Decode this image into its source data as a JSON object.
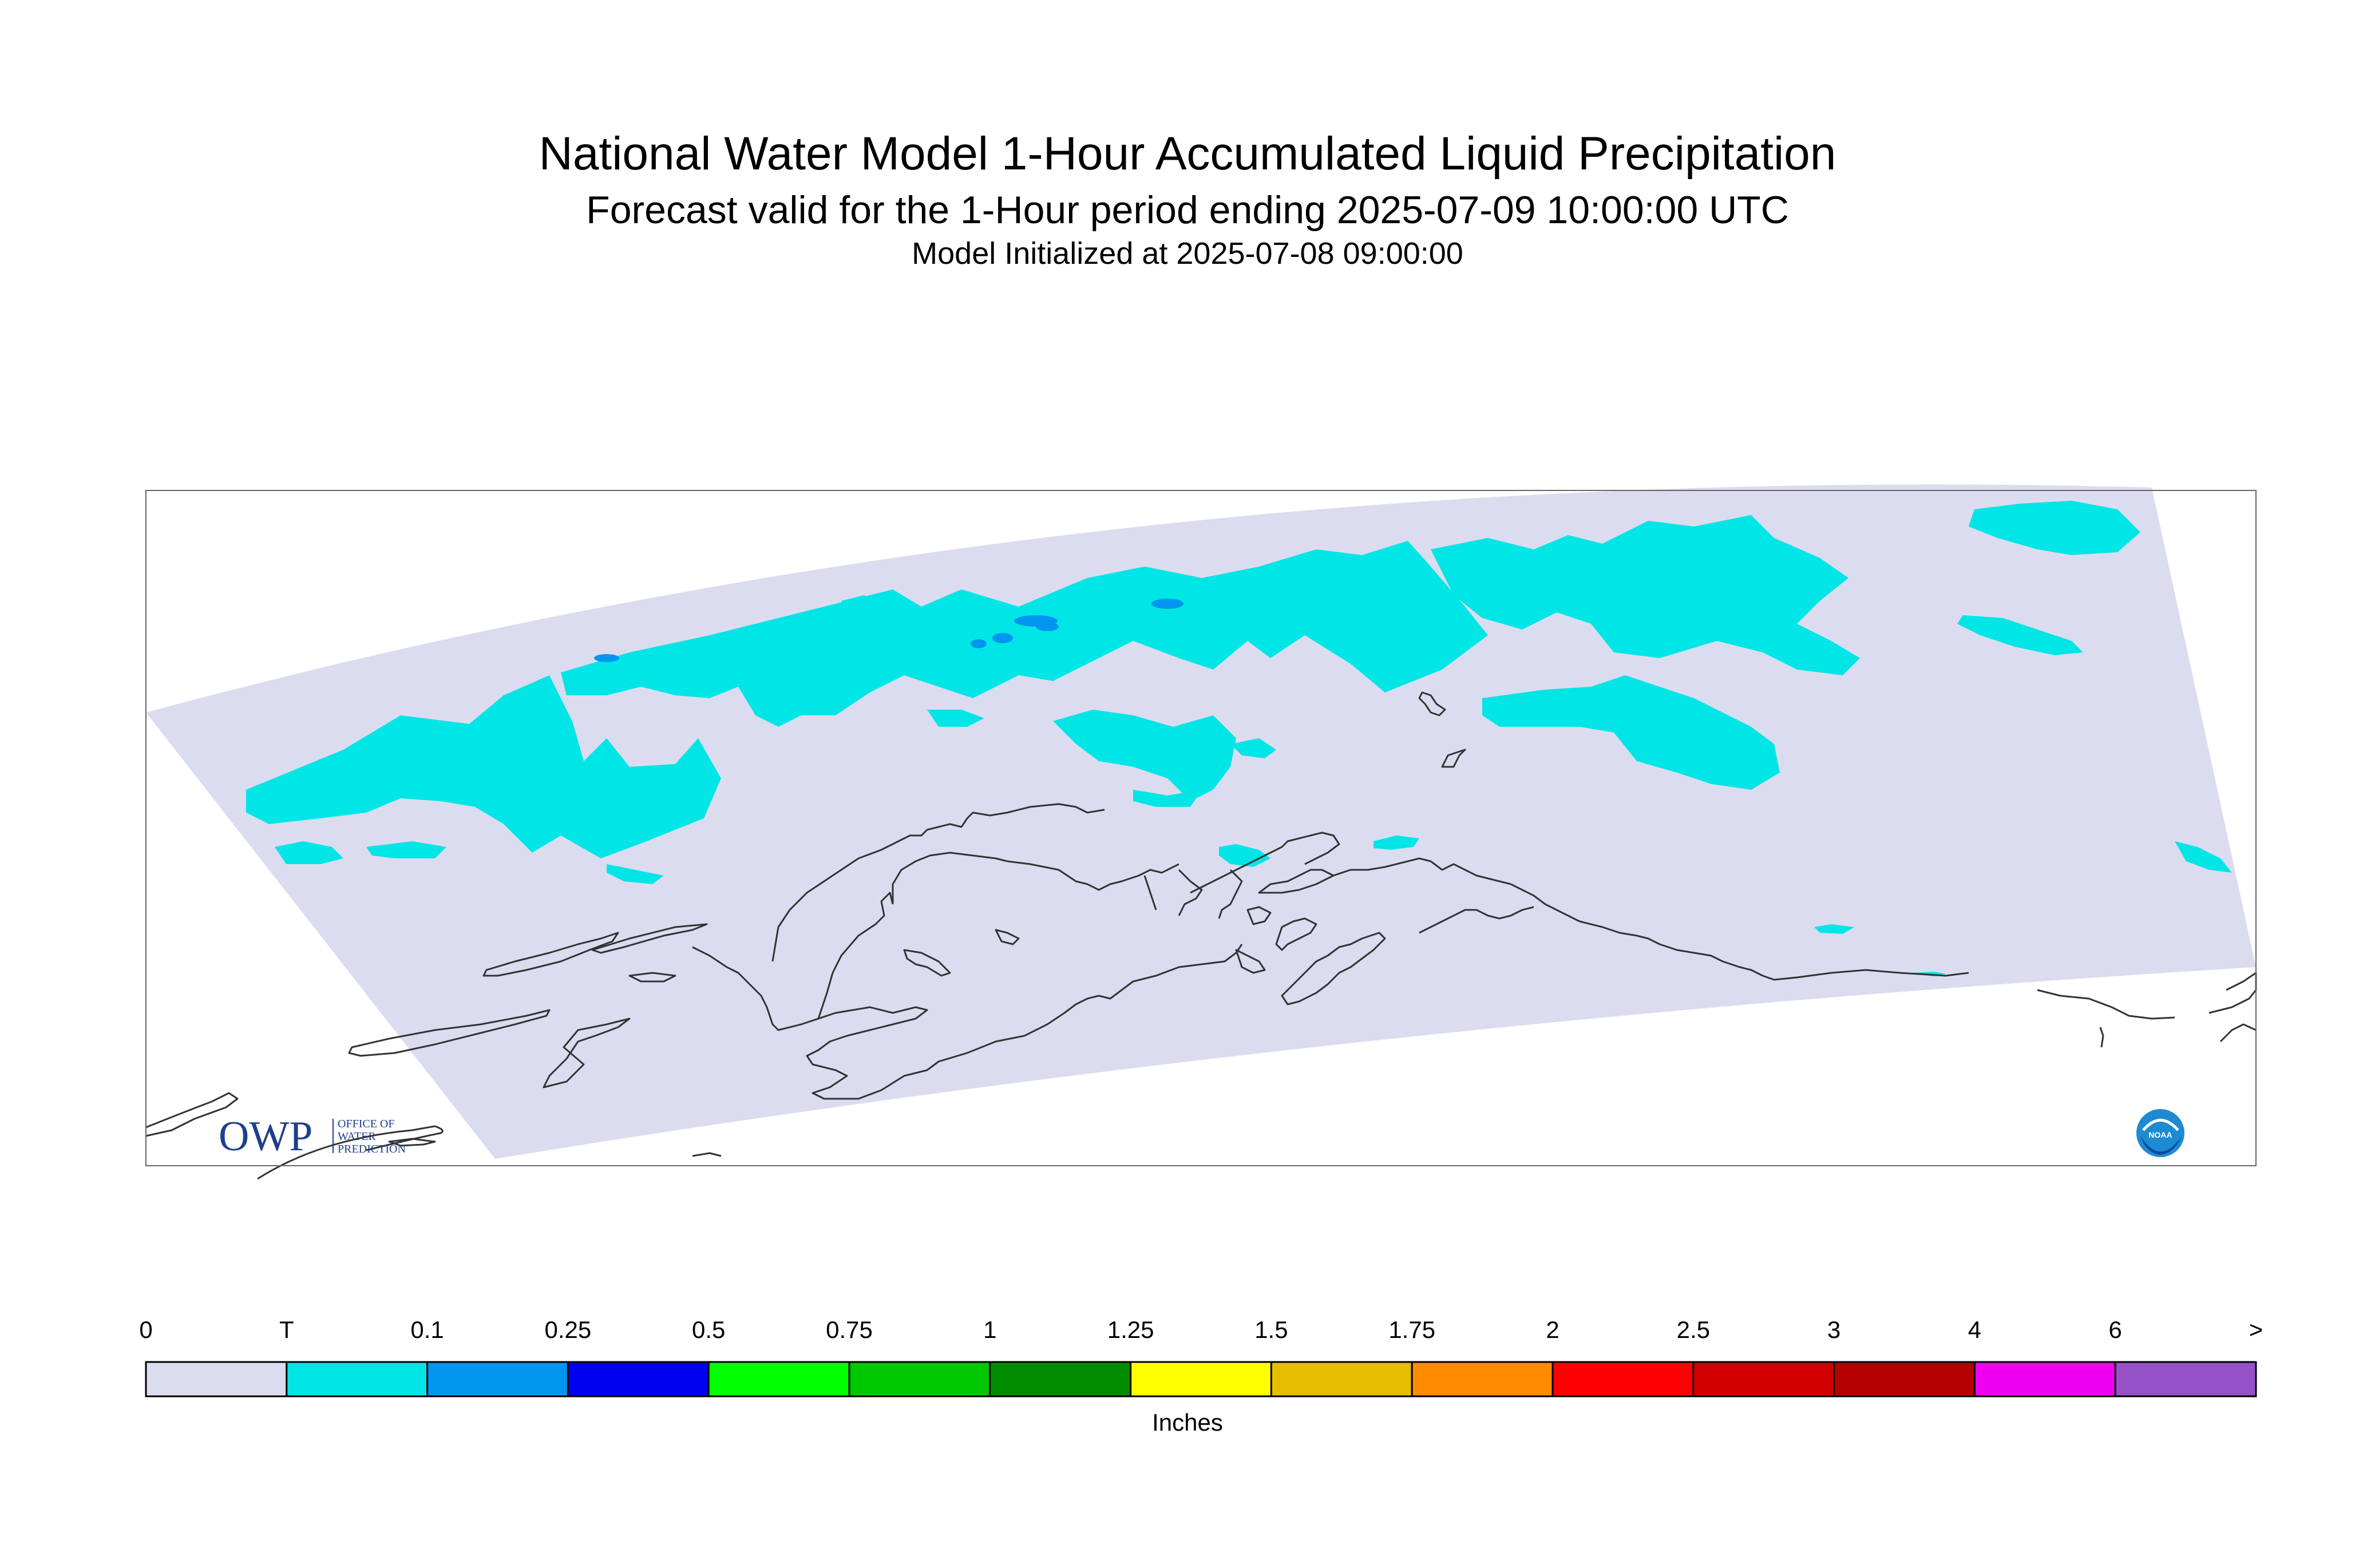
{
  "title": "National Water Model 1-Hour Accumulated Liquid Precipitation",
  "subtitle": "Forecast valid for the 1-Hour period ending 2025-07-09 10:00:00 UTC",
  "init": "Model Initialized at 2025-07-08 09:00:00",
  "units": "Inches",
  "logos": {
    "left": "OWP",
    "left_sub": [
      "OFFICE OF",
      "WATER",
      "PREDICTION"
    ],
    "right": "NOAA"
  },
  "legend": [
    {
      "label": "0",
      "color": "#dcdcf0"
    },
    {
      "label": "T",
      "color": "#00e6e6"
    },
    {
      "label": "0.1",
      "color": "#0096f0"
    },
    {
      "label": "0.25",
      "color": "#0000f0"
    },
    {
      "label": "0.5",
      "color": "#00ff00"
    },
    {
      "label": "0.75",
      "color": "#00c800"
    },
    {
      "label": "1",
      "color": "#008c00"
    },
    {
      "label": "1.25",
      "color": "#ffff00"
    },
    {
      "label": "1.5",
      "color": "#e6be00"
    },
    {
      "label": "1.75",
      "color": "#ff8c00"
    },
    {
      "label": "2",
      "color": "#ff0000"
    },
    {
      "label": "2.5",
      "color": "#d20000"
    },
    {
      "label": "3",
      "color": "#b40000"
    },
    {
      "label": "4",
      "color": "#f000f0"
    },
    {
      "label": "6",
      "color": "#9650c8"
    }
  ],
  "legend_end_label": ">"
}
